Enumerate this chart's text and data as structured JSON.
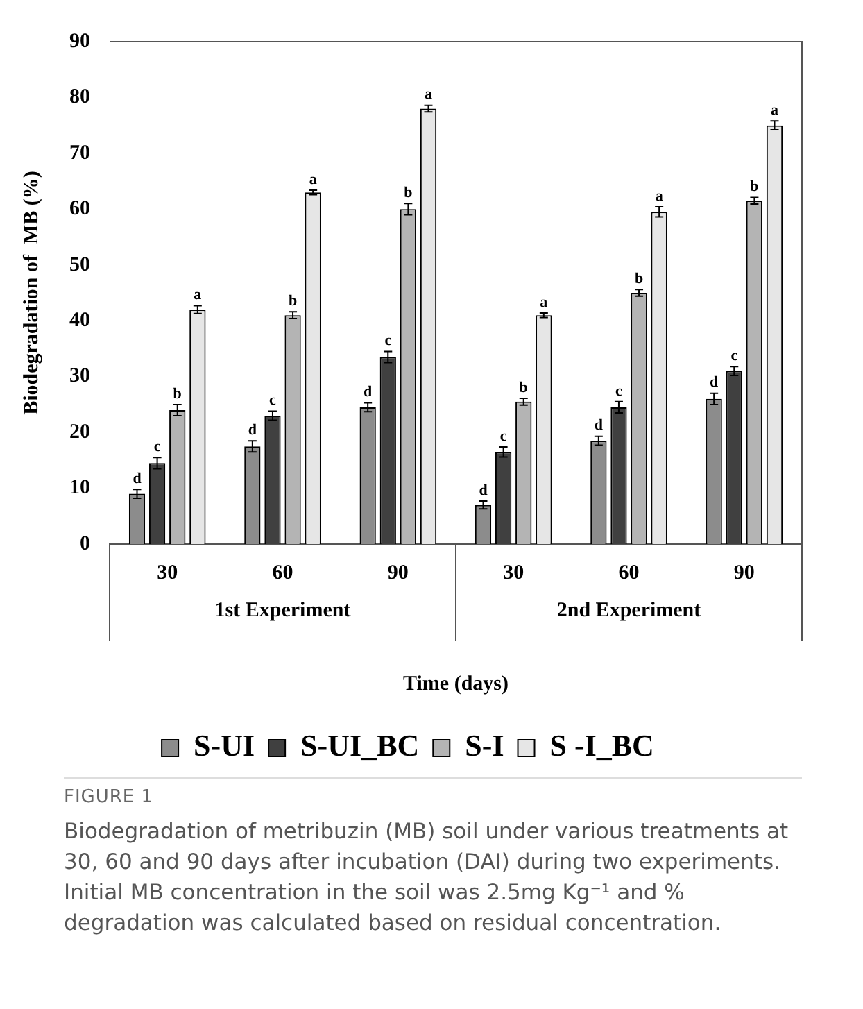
{
  "chart_data": {
    "type": "bar",
    "ylabel": "Biodegradation of  MB (%)",
    "xlabel": "Time (days)",
    "categories": [
      "30",
      "60",
      "90",
      "30",
      "60",
      "90"
    ],
    "ylim": [
      0,
      90
    ],
    "yticks": [
      0,
      10,
      20,
      30,
      40,
      50,
      60,
      70,
      80,
      90
    ],
    "grid": false,
    "legend": "bottom",
    "series": [
      {
        "name": "S-UI",
        "color": "#8c8c8c",
        "values": [
          9,
          17.5,
          24.5,
          7,
          18.5,
          26
        ],
        "errors": [
          0.8,
          1,
          0.8,
          0.7,
          0.8,
          1
        ],
        "value_labels": [
          "d",
          "d",
          "d",
          "d",
          "d",
          "d"
        ]
      },
      {
        "name": "S-UI_BC",
        "color": "#404040",
        "values": [
          14.5,
          23,
          33.5,
          16.5,
          24.5,
          31
        ],
        "errors": [
          1,
          0.8,
          1,
          0.9,
          1,
          0.8
        ],
        "value_labels": [
          "c",
          "c",
          "c",
          "c",
          "c",
          "c"
        ]
      },
      {
        "name": "S-I",
        "color": "#b4b4b4",
        "values": [
          24,
          41,
          60,
          25.5,
          45,
          61.5
        ],
        "errors": [
          1,
          0.6,
          1,
          0.6,
          0.6,
          0.6
        ],
        "value_labels": [
          "b",
          "b",
          "b",
          "b",
          "b",
          "b"
        ]
      },
      {
        "name": "S -I_BC",
        "color": "#e6e6e6",
        "values": [
          42,
          63,
          78,
          41,
          59.5,
          75
        ],
        "errors": [
          0.7,
          0.4,
          0.6,
          0.4,
          0.9,
          0.8
        ],
        "value_labels": [
          "a",
          "a",
          "a",
          "a",
          "a",
          "a"
        ]
      }
    ],
    "annotations": [
      "1st Experiment",
      "2nd Experiment",
      "FIGURE 1",
      "Biodegradation of metribuzin (MB) soil under various treatments at 30, 60 and 90 days after incubation (DAI) during two experiments. Initial MB concentration in the soil was 2.5mg Kg⁻¹ and %  degradation was calculated based on residual concentration."
    ]
  }
}
